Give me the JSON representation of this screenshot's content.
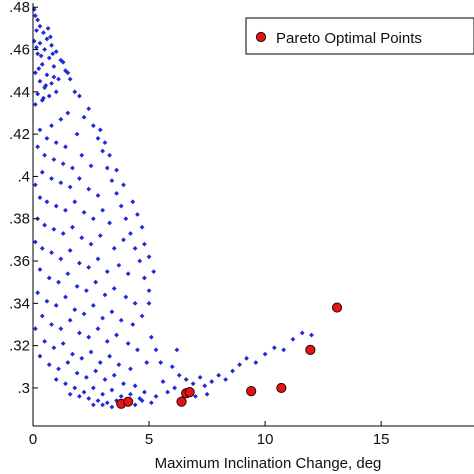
{
  "chart_data": {
    "type": "scatter",
    "title": "",
    "xlabel": "Maximum Inclination Change, deg",
    "ylabel": "",
    "xlim": [
      0,
      19
    ],
    "ylim": [
      0.282,
      0.482
    ],
    "x_ticks": [
      0,
      5,
      10,
      15
    ],
    "x_tick_labels": [
      "0",
      "5",
      "10",
      "15"
    ],
    "y_ticks": [
      0.3,
      0.32,
      0.34,
      0.36,
      0.38,
      0.4,
      0.42,
      0.44,
      0.46,
      0.48
    ],
    "y_tick_labels": [
      ".3",
      ".32",
      ".34",
      ".36",
      ".38",
      ".4",
      ".42",
      ".44",
      ".46",
      ".48"
    ],
    "grid": false,
    "legend_position": "top-right",
    "series": [
      {
        "name": "",
        "marker": "diamond",
        "color": "#1f2bd6",
        "points": [
          [
            0.05,
            0.479
          ],
          [
            0.1,
            0.476
          ],
          [
            0.2,
            0.474
          ],
          [
            0.3,
            0.471
          ],
          [
            0.15,
            0.469
          ],
          [
            0.45,
            0.468
          ],
          [
            0.6,
            0.465
          ],
          [
            0.3,
            0.463
          ],
          [
            0.8,
            0.462
          ],
          [
            0.5,
            0.46
          ],
          [
            1.0,
            0.459
          ],
          [
            0.2,
            0.458
          ],
          [
            0.7,
            0.456
          ],
          [
            1.2,
            0.455
          ],
          [
            0.4,
            0.453
          ],
          [
            0.9,
            0.452
          ],
          [
            1.4,
            0.45
          ],
          [
            0.1,
            0.449
          ],
          [
            0.6,
            0.448
          ],
          [
            1.1,
            0.446
          ],
          [
            0.3,
            0.445
          ],
          [
            0.8,
            0.444
          ],
          [
            0.5,
            0.442
          ],
          [
            1.0,
            0.44
          ],
          [
            0.2,
            0.439
          ],
          [
            0.7,
            0.438
          ],
          [
            0.4,
            0.436
          ],
          [
            0.1,
            0.434
          ],
          [
            0.9,
            0.447
          ],
          [
            0.35,
            0.457
          ],
          [
            0.55,
            0.443
          ],
          [
            0.25,
            0.451
          ],
          [
            0.75,
            0.466
          ],
          [
            0.15,
            0.461
          ],
          [
            1.3,
            0.454
          ],
          [
            0.65,
            0.47
          ],
          [
            0.45,
            0.437
          ],
          [
            0.85,
            0.458
          ],
          [
            1.5,
            0.449
          ],
          [
            0.05,
            0.464
          ],
          [
            1.6,
            0.446
          ],
          [
            2.0,
            0.438
          ],
          [
            1.8,
            0.44
          ],
          [
            2.4,
            0.432
          ],
          [
            2.2,
            0.428
          ],
          [
            2.6,
            0.424
          ],
          [
            1.5,
            0.43
          ],
          [
            1.2,
            0.427
          ],
          [
            0.8,
            0.424
          ],
          [
            0.3,
            0.422
          ],
          [
            0.6,
            0.418
          ],
          [
            1.0,
            0.416
          ],
          [
            1.4,
            0.414
          ],
          [
            1.9,
            0.42
          ],
          [
            2.8,
            0.418
          ],
          [
            3.0,
            0.412
          ],
          [
            0.2,
            0.414
          ],
          [
            0.5,
            0.41
          ],
          [
            0.9,
            0.408
          ],
          [
            1.3,
            0.406
          ],
          [
            1.7,
            0.404
          ],
          [
            2.1,
            0.41
          ],
          [
            2.5,
            0.405
          ],
          [
            3.2,
            0.404
          ],
          [
            3.4,
            0.398
          ],
          [
            0.4,
            0.402
          ],
          [
            0.8,
            0.399
          ],
          [
            1.2,
            0.397
          ],
          [
            1.6,
            0.395
          ],
          [
            2.0,
            0.399
          ],
          [
            2.4,
            0.394
          ],
          [
            2.8,
            0.391
          ],
          [
            3.6,
            0.392
          ],
          [
            3.8,
            0.386
          ],
          [
            0.1,
            0.396
          ],
          [
            0.3,
            0.39
          ],
          [
            0.6,
            0.388
          ],
          [
            1.0,
            0.386
          ],
          [
            1.4,
            0.384
          ],
          [
            1.8,
            0.388
          ],
          [
            2.2,
            0.383
          ],
          [
            2.6,
            0.38
          ],
          [
            3.0,
            0.384
          ],
          [
            3.3,
            0.378
          ],
          [
            4.0,
            0.38
          ],
          [
            4.2,
            0.373
          ],
          [
            0.2,
            0.38
          ],
          [
            0.5,
            0.377
          ],
          [
            0.9,
            0.375
          ],
          [
            1.3,
            0.373
          ],
          [
            1.7,
            0.376
          ],
          [
            2.1,
            0.371
          ],
          [
            2.5,
            0.368
          ],
          [
            2.9,
            0.372
          ],
          [
            3.5,
            0.366
          ],
          [
            3.9,
            0.37
          ],
          [
            4.4,
            0.366
          ],
          [
            4.6,
            0.36
          ],
          [
            0.1,
            0.369
          ],
          [
            0.4,
            0.366
          ],
          [
            0.8,
            0.364
          ],
          [
            1.2,
            0.361
          ],
          [
            1.6,
            0.365
          ],
          [
            2.0,
            0.359
          ],
          [
            2.4,
            0.357
          ],
          [
            2.8,
            0.361
          ],
          [
            3.2,
            0.355
          ],
          [
            3.7,
            0.358
          ],
          [
            4.1,
            0.354
          ],
          [
            4.8,
            0.352
          ],
          [
            0.3,
            0.356
          ],
          [
            0.7,
            0.352
          ],
          [
            1.1,
            0.35
          ],
          [
            1.5,
            0.354
          ],
          [
            1.9,
            0.348
          ],
          [
            2.3,
            0.346
          ],
          [
            2.7,
            0.35
          ],
          [
            3.1,
            0.344
          ],
          [
            3.5,
            0.347
          ],
          [
            4.0,
            0.343
          ],
          [
            4.4,
            0.34
          ],
          [
            5.0,
            0.346
          ],
          [
            0.2,
            0.345
          ],
          [
            0.6,
            0.341
          ],
          [
            1.0,
            0.339
          ],
          [
            1.4,
            0.343
          ],
          [
            1.8,
            0.337
          ],
          [
            2.2,
            0.335
          ],
          [
            2.6,
            0.339
          ],
          [
            3.0,
            0.333
          ],
          [
            3.4,
            0.336
          ],
          [
            3.8,
            0.332
          ],
          [
            4.3,
            0.33
          ],
          [
            4.7,
            0.334
          ],
          [
            0.4,
            0.334
          ],
          [
            0.8,
            0.33
          ],
          [
            1.2,
            0.328
          ],
          [
            1.6,
            0.332
          ],
          [
            2.0,
            0.326
          ],
          [
            2.4,
            0.324
          ],
          [
            2.8,
            0.328
          ],
          [
            3.2,
            0.322
          ],
          [
            3.6,
            0.325
          ],
          [
            4.1,
            0.321
          ],
          [
            4.5,
            0.318
          ],
          [
            0.1,
            0.328
          ],
          [
            0.5,
            0.322
          ],
          [
            0.9,
            0.319
          ],
          [
            1.3,
            0.321
          ],
          [
            1.7,
            0.316
          ],
          [
            2.1,
            0.314
          ],
          [
            2.5,
            0.317
          ],
          [
            2.9,
            0.312
          ],
          [
            3.3,
            0.315
          ],
          [
            3.7,
            0.311
          ],
          [
            4.2,
            0.309
          ],
          [
            4.9,
            0.312
          ],
          [
            0.3,
            0.315
          ],
          [
            0.7,
            0.311
          ],
          [
            1.1,
            0.309
          ],
          [
            1.5,
            0.312
          ],
          [
            1.9,
            0.307
          ],
          [
            2.3,
            0.305
          ],
          [
            2.7,
            0.308
          ],
          [
            3.1,
            0.304
          ],
          [
            3.5,
            0.306
          ],
          [
            3.9,
            0.302
          ],
          [
            4.4,
            0.301
          ],
          [
            1.0,
            0.304
          ],
          [
            1.4,
            0.302
          ],
          [
            1.8,
            0.3
          ],
          [
            2.2,
            0.298
          ],
          [
            2.6,
            0.3
          ],
          [
            3.0,
            0.297
          ],
          [
            3.4,
            0.299
          ],
          [
            3.8,
            0.296
          ],
          [
            4.2,
            0.297
          ],
          [
            4.6,
            0.295
          ],
          [
            1.6,
            0.297
          ],
          [
            2.0,
            0.296
          ],
          [
            2.4,
            0.295
          ],
          [
            2.8,
            0.294
          ],
          [
            3.2,
            0.293
          ],
          [
            3.6,
            0.294
          ],
          [
            4.0,
            0.293
          ],
          [
            4.4,
            0.292
          ],
          [
            4.7,
            0.294
          ],
          [
            5.1,
            0.293
          ],
          [
            2.6,
            0.292
          ],
          [
            3.0,
            0.292
          ],
          [
            3.4,
            0.291
          ],
          [
            4.8,
            0.298
          ],
          [
            5.3,
            0.296
          ],
          [
            2.9,
            0.422
          ],
          [
            3.1,
            0.416
          ],
          [
            3.3,
            0.41
          ],
          [
            3.6,
            0.403
          ],
          [
            3.9,
            0.396
          ],
          [
            4.3,
            0.388
          ],
          [
            4.5,
            0.382
          ],
          [
            4.7,
            0.376
          ],
          [
            4.8,
            0.368
          ],
          [
            5.0,
            0.362
          ],
          [
            5.2,
            0.355
          ],
          [
            5.0,
            0.34
          ],
          [
            5.1,
            0.324
          ],
          [
            5.3,
            0.318
          ],
          [
            5.5,
            0.312
          ],
          [
            5.6,
            0.303
          ],
          [
            6.0,
            0.31
          ],
          [
            6.3,
            0.306
          ],
          [
            6.6,
            0.304
          ],
          [
            6.1,
            0.3
          ],
          [
            6.9,
            0.302
          ],
          [
            7.2,
            0.305
          ],
          [
            7.4,
            0.301
          ],
          [
            7.7,
            0.303
          ],
          [
            8.0,
            0.306
          ],
          [
            8.3,
            0.304
          ],
          [
            8.6,
            0.308
          ],
          [
            8.9,
            0.311
          ],
          [
            9.2,
            0.314
          ],
          [
            9.6,
            0.312
          ],
          [
            10.0,
            0.316
          ],
          [
            10.4,
            0.319
          ],
          [
            10.8,
            0.318
          ],
          [
            11.2,
            0.323
          ],
          [
            11.6,
            0.326
          ],
          [
            12.0,
            0.325
          ],
          [
            6.2,
            0.318
          ],
          [
            6.5,
            0.296
          ],
          [
            7.0,
            0.296
          ],
          [
            7.5,
            0.297
          ],
          [
            5.8,
            0.298
          ]
        ]
      },
      {
        "name": "Pareto Optimal Points",
        "marker": "circle",
        "color": "#e01515",
        "edge": "#3a0000",
        "points": [
          [
            3.8,
            0.2925
          ],
          [
            4.1,
            0.2935
          ],
          [
            6.4,
            0.2935
          ],
          [
            6.6,
            0.2975
          ],
          [
            6.75,
            0.298
          ],
          [
            9.4,
            0.2985
          ],
          [
            10.7,
            0.3
          ],
          [
            11.95,
            0.318
          ],
          [
            13.1,
            0.338
          ]
        ]
      }
    ]
  }
}
